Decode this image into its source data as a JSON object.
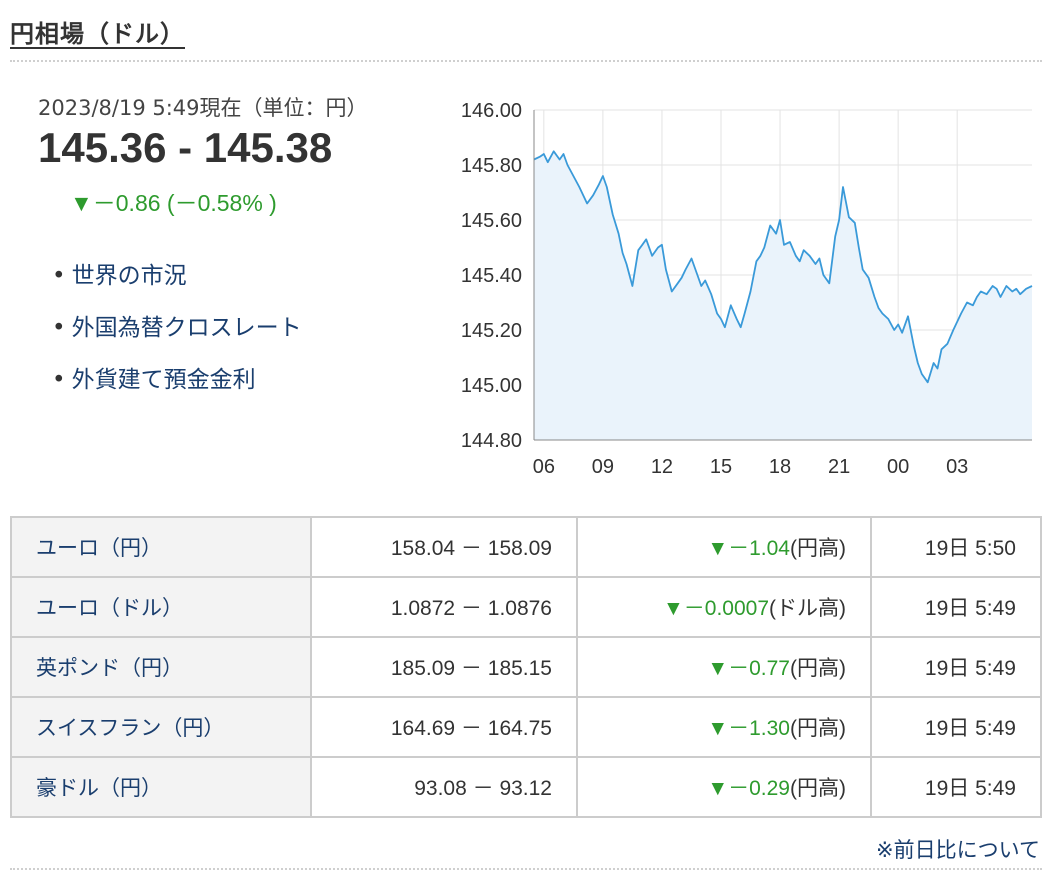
{
  "page": {
    "title": "円相場（ドル）"
  },
  "summary": {
    "as_of": "2023/8/19 5:49現在（単位：円）",
    "rate": "145.36 - 145.38",
    "change": "▼－0.86 (－0.58% )"
  },
  "links": [
    {
      "label": "世界の市況"
    },
    {
      "label": "外国為替クロスレート"
    },
    {
      "label": "外貨建て預金金利"
    }
  ],
  "chart_data": {
    "type": "line",
    "title": "",
    "xlabel": "",
    "ylabel": "",
    "ylim": [
      144.8,
      146.0
    ],
    "yticks": [
      "146.00",
      "145.80",
      "145.60",
      "145.40",
      "145.20",
      "145.00",
      "144.80"
    ],
    "xticks": [
      "06",
      "09",
      "12",
      "15",
      "18",
      "21",
      "00",
      "03"
    ],
    "grid": true,
    "line_color": "#3a9ad9",
    "fill_color": "#eaf3fb",
    "series": [
      {
        "x": [
          5.5,
          5.8,
          6.0,
          6.2,
          6.5,
          6.8,
          7.0,
          7.2,
          7.5,
          7.8,
          8.0,
          8.2,
          8.5,
          8.8,
          9.0,
          9.2,
          9.5,
          9.8,
          10.0,
          10.2,
          10.5,
          10.8,
          11.0,
          11.2,
          11.5,
          11.8,
          12.0,
          12.2,
          12.5,
          12.8,
          13.0,
          13.2,
          13.5,
          13.8,
          14.0,
          14.2,
          14.5,
          14.8,
          15.0,
          15.2,
          15.5,
          15.8,
          16.0,
          16.2,
          16.5,
          16.8,
          17.0,
          17.2,
          17.5,
          17.8,
          18.0,
          18.2,
          18.5,
          18.8,
          19.0,
          19.2,
          19.5,
          19.8,
          20.0,
          20.2,
          20.5,
          20.8,
          21.0,
          21.2,
          21.5,
          21.8,
          22.0,
          22.2,
          22.5,
          22.8,
          23.0,
          23.2,
          23.5,
          23.8,
          24.0,
          24.2,
          24.5,
          24.8,
          25.0,
          25.2,
          25.5,
          25.8,
          26.0,
          26.2,
          26.5,
          26.8,
          27.0,
          27.2,
          27.5,
          27.8,
          28.0,
          28.2,
          28.5,
          28.8,
          29.0,
          29.2,
          29.5,
          29.8,
          30.0,
          30.2,
          30.5,
          30.8
        ],
        "values": [
          145.82,
          145.83,
          145.84,
          145.81,
          145.85,
          145.82,
          145.84,
          145.8,
          145.76,
          145.72,
          145.69,
          145.66,
          145.69,
          145.73,
          145.76,
          145.72,
          145.62,
          145.55,
          145.48,
          145.44,
          145.36,
          145.49,
          145.51,
          145.53,
          145.47,
          145.5,
          145.51,
          145.42,
          145.34,
          145.37,
          145.39,
          145.42,
          145.46,
          145.4,
          145.36,
          145.38,
          145.33,
          145.26,
          145.24,
          145.21,
          145.29,
          145.24,
          145.21,
          145.26,
          145.34,
          145.45,
          145.47,
          145.5,
          145.58,
          145.55,
          145.6,
          145.51,
          145.52,
          145.47,
          145.45,
          145.49,
          145.47,
          145.44,
          145.46,
          145.4,
          145.37,
          145.54,
          145.6,
          145.72,
          145.61,
          145.59,
          145.5,
          145.42,
          145.39,
          145.32,
          145.28,
          145.26,
          145.24,
          145.2,
          145.22,
          145.19,
          145.25,
          145.14,
          145.08,
          145.04,
          145.01,
          145.08,
          145.06,
          145.13,
          145.15,
          145.2,
          145.23,
          145.26,
          145.3,
          145.29,
          145.32,
          145.34,
          145.33,
          145.36,
          145.35,
          145.32,
          145.36,
          145.34,
          145.35,
          145.33,
          145.35,
          145.36
        ]
      }
    ]
  },
  "table": {
    "rows": [
      {
        "name": "ユーロ（円）",
        "bid_ask": "158.04 － 158.09",
        "change": "▼－1.04",
        "change_suffix": "(円高)",
        "time": "19日 5:50"
      },
      {
        "name": "ユーロ（ドル）",
        "bid_ask": "1.0872 － 1.0876",
        "change": "▼－0.0007",
        "change_suffix": "(ドル高)",
        "time": "19日 5:49"
      },
      {
        "name": "英ポンド（円）",
        "bid_ask": "185.09 － 185.15",
        "change": "▼－0.77",
        "change_suffix": "(円高)",
        "time": "19日 5:49"
      },
      {
        "name": "スイスフラン（円）",
        "bid_ask": "164.69 － 164.75",
        "change": "▼－1.30",
        "change_suffix": "(円高)",
        "time": "19日 5:49"
      },
      {
        "name": "豪ドル（円）",
        "bid_ask": "93.08 － 93.12",
        "change": "▼－0.29",
        "change_suffix": "(円高)",
        "time": "19日 5:49"
      }
    ]
  },
  "footer": {
    "note": "※前日比について"
  }
}
